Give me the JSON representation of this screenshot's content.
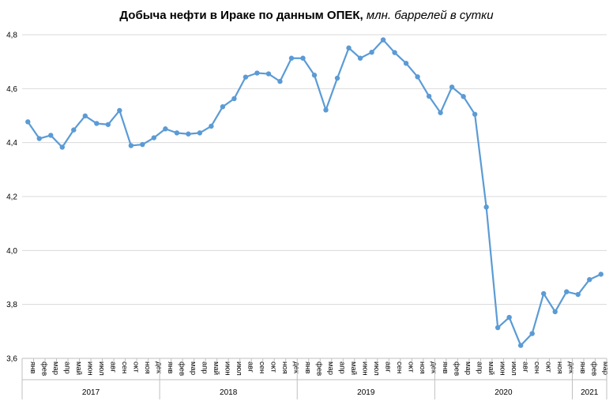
{
  "chart_data": {
    "type": "line",
    "title": "Добыча  нефти в Ираке по данным ОПЕК,",
    "subtitle": "млн. баррелей в сутки",
    "ylim": [
      3.6,
      4.8
    ],
    "yticks": [
      "3,6",
      "3,8",
      "4,0",
      "4,2",
      "4,4",
      "4,6",
      "4,8"
    ],
    "grid": true,
    "line_color": "#5b9bd5",
    "grid_color": "#d9d9d9",
    "axis_color": "#bfbfbf",
    "months": [
      "янв",
      "фев",
      "мар",
      "апр",
      "май",
      "июн",
      "июл",
      "авг",
      "сен",
      "окт",
      "ноя",
      "дек"
    ],
    "years": [
      {
        "label": "2017",
        "count": 12
      },
      {
        "label": "2018",
        "count": 12
      },
      {
        "label": "2019",
        "count": 12
      },
      {
        "label": "2020",
        "count": 12
      },
      {
        "label": "2021",
        "count": 3
      }
    ],
    "series": [
      {
        "values": [
          4.477,
          4.415,
          4.427,
          4.383,
          4.447,
          4.499,
          4.471,
          4.467,
          4.519,
          4.389,
          4.393,
          4.418,
          4.451,
          4.436,
          4.432,
          4.436,
          4.461,
          4.533,
          4.563,
          4.643,
          4.658,
          4.655,
          4.627,
          4.713,
          4.713,
          4.65,
          4.521,
          4.639,
          4.751,
          4.713,
          4.735,
          4.781,
          4.734,
          4.694,
          4.644,
          4.572,
          4.511,
          4.606,
          4.571,
          4.505,
          4.161,
          3.714,
          3.752,
          3.648,
          3.692,
          3.84,
          3.773,
          3.847,
          3.837,
          3.892,
          3.912
        ]
      }
    ]
  }
}
